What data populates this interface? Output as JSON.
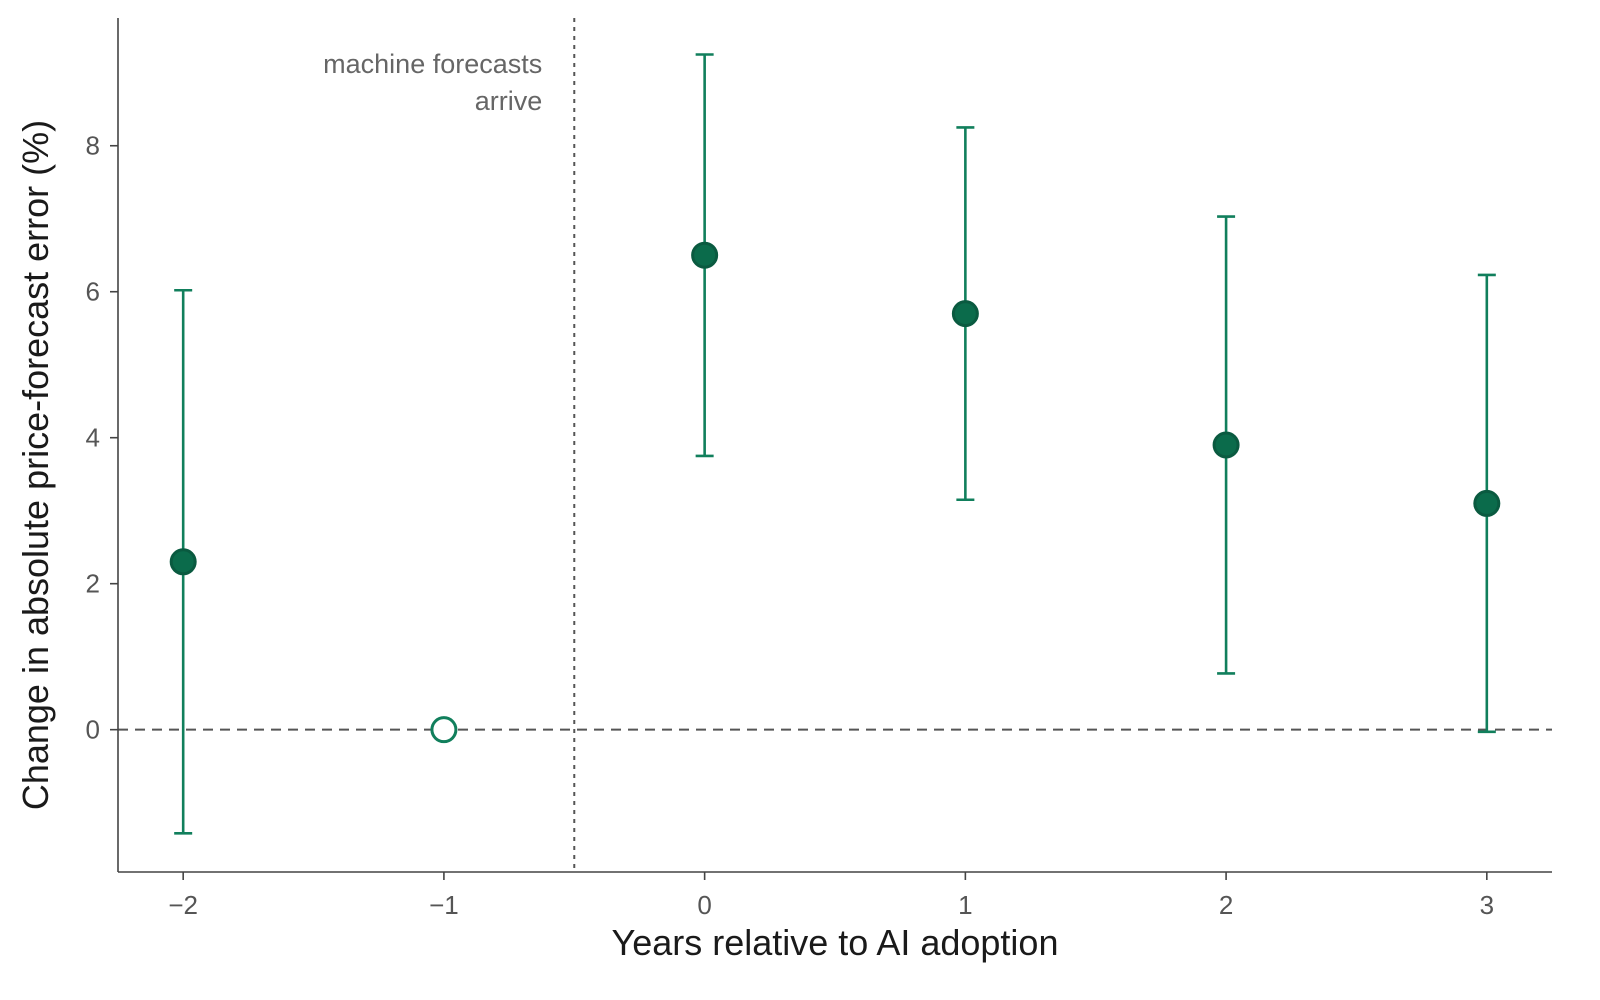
{
  "chart_data": {
    "type": "scatter",
    "subtype": "event-study with confidence intervals",
    "xlabel": "Years relative to AI adoption",
    "ylabel": "Change in absolute price-forecast error (%)",
    "xlim": [
      -2.25,
      3.25
    ],
    "ylim": [
      -1.95,
      9.75
    ],
    "x_ticks": [
      "−2",
      "−1",
      "0",
      "1",
      "2",
      "3"
    ],
    "x_tick_values": [
      -2,
      -1,
      0,
      1,
      2,
      3
    ],
    "y_ticks": [
      "0",
      "2",
      "4",
      "6",
      "8"
    ],
    "y_tick_values": [
      0,
      2,
      4,
      6,
      8
    ],
    "points": [
      {
        "x": -2,
        "estimate": 2.3,
        "ci_low": -1.42,
        "ci_high": 6.02,
        "reference": false
      },
      {
        "x": -1,
        "estimate": 0.0,
        "ci_low": null,
        "ci_high": null,
        "reference": true
      },
      {
        "x": 0,
        "estimate": 6.5,
        "ci_low": 3.75,
        "ci_high": 9.25
      },
      {
        "x": 1,
        "estimate": 5.7,
        "ci_low": 3.15,
        "ci_high": 8.25
      },
      {
        "x": 2,
        "estimate": 3.9,
        "ci_low": 0.77,
        "ci_high": 7.03
      },
      {
        "x": 3,
        "estimate": 3.1,
        "ci_low": -0.03,
        "ci_high": 6.23
      }
    ],
    "reference_lines": [
      {
        "orientation": "horizontal",
        "value": 0,
        "style": "dashed"
      },
      {
        "orientation": "vertical",
        "value": -0.5,
        "style": "dotted"
      }
    ],
    "annotation": {
      "lines": [
        "machine forecasts",
        "arrive"
      ],
      "x": -0.5,
      "y": 9.0
    },
    "grid": false,
    "colors": {
      "marker_fill": "#0b6b4b",
      "marker_edge": "#0a5a40",
      "errorbar": "#117f5c",
      "reference_line": "#555555",
      "axis": "#444444"
    }
  }
}
